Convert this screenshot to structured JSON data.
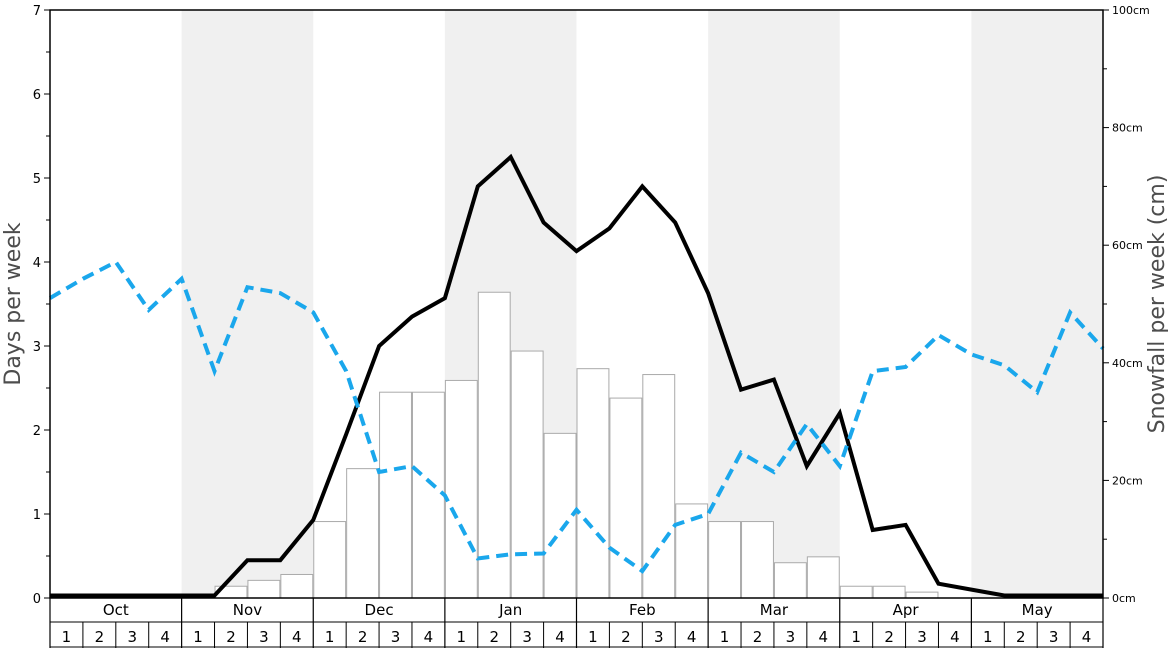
{
  "chart_data": {
    "type": "bar",
    "left_axis": {
      "label": "Days per week",
      "ticks": [
        "0",
        "1",
        "2",
        "3",
        "4",
        "5",
        "6",
        "7"
      ],
      "range": [
        0,
        7
      ]
    },
    "right_axis": {
      "label": "Snowfall per week (cm)",
      "ticks": [
        "0cm",
        "20cm",
        "40cm",
        "60cm",
        "80cm",
        "100cm"
      ],
      "range": [
        0,
        100
      ]
    },
    "months": [
      "Oct",
      "Nov",
      "Dec",
      "Jan",
      "Feb",
      "Mar",
      "Apr",
      "May"
    ],
    "week_labels": [
      "1",
      "2",
      "3",
      "4"
    ],
    "shaded_months": [
      "Nov",
      "Jan",
      "Mar",
      "May"
    ],
    "grid": false,
    "colors": {
      "bars_fill": "#ffffff",
      "bars_stroke": "#aaaaaa",
      "solid_line": "#000000",
      "dashed_line": "#1aa7ec",
      "band": "#f0f0f0"
    },
    "series": [
      {
        "kind": "bar",
        "axis": "right",
        "unit": "cm",
        "values": [
          0,
          0,
          0,
          0,
          0,
          2,
          3,
          4,
          13,
          22,
          35,
          35,
          37,
          52,
          42,
          28,
          39,
          34,
          38,
          16,
          13,
          13,
          6,
          7,
          2,
          2,
          1,
          0,
          0,
          0,
          0,
          0
        ]
      },
      {
        "kind": "line",
        "style": "solid",
        "axis": "left",
        "values": [
          0.03,
          0.03,
          0.03,
          0.03,
          0.03,
          0.03,
          0.45,
          0.45,
          0.93,
          1.95,
          3.0,
          3.35,
          3.57,
          4.9,
          5.25,
          4.47,
          4.13,
          4.4,
          4.9,
          4.47,
          3.63,
          2.48,
          2.6,
          1.57,
          2.2,
          0.81,
          0.87,
          0.17,
          0.1,
          0.03,
          0.03,
          0.03
        ]
      },
      {
        "kind": "line",
        "style": "dashed",
        "axis": "left",
        "values": [
          3.57,
          3.8,
          4.0,
          3.43,
          3.8,
          2.7,
          3.7,
          3.63,
          3.4,
          2.7,
          1.5,
          1.57,
          1.22,
          0.47,
          0.52,
          0.53,
          1.05,
          0.6,
          0.32,
          0.87,
          1.0,
          1.73,
          1.5,
          2.07,
          1.57,
          2.7,
          2.75,
          3.13,
          2.9,
          2.77,
          2.45,
          3.4
        ]
      }
    ],
    "extra_points": {
      "solid_end": 0.03,
      "dashed_end": 2.97
    }
  }
}
